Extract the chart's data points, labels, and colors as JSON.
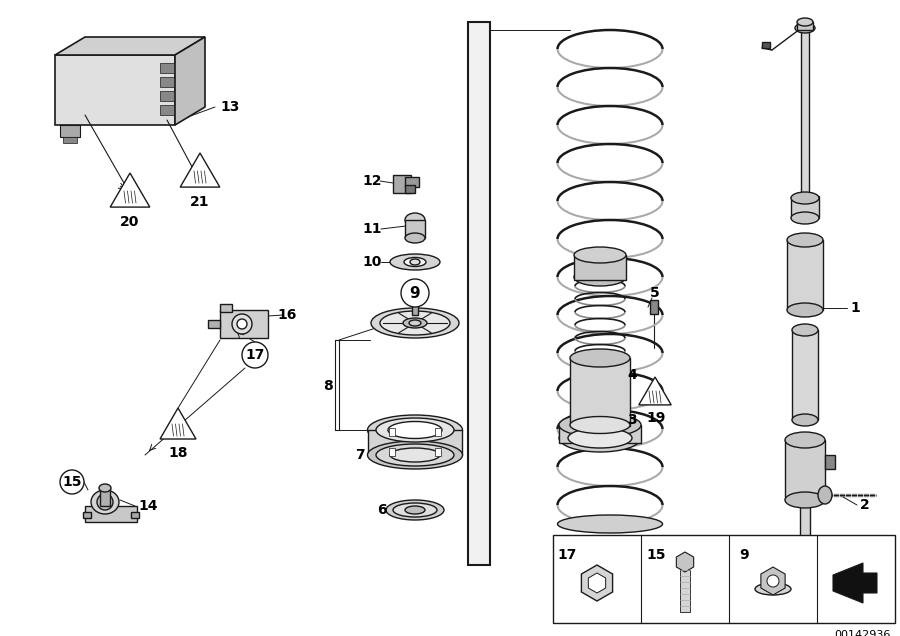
{
  "ref_code": "00142936",
  "bg_color": "#ffffff",
  "line_color": "#1a1a1a",
  "label_color": "#000000",
  "figsize": [
    9.0,
    6.36
  ],
  "dpi": 100
}
